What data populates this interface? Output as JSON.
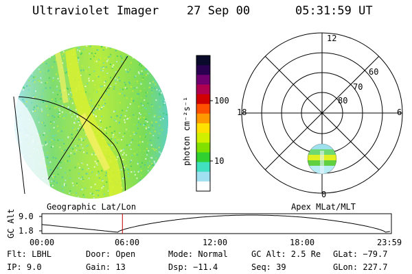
{
  "header": {
    "instrument": "Ultraviolet Imager",
    "date": "27 Sep 00",
    "time": "05:31:59 UT"
  },
  "colorbar": {
    "label": "photon cm⁻²s⁻¹",
    "ticks": [
      "100",
      "10"
    ],
    "colors": [
      "#0a0a2a",
      "#2a0050",
      "#700070",
      "#b00050",
      "#d00000",
      "#ff5000",
      "#ff9900",
      "#ffe000",
      "#d0f000",
      "#80e000",
      "#30d030",
      "#40e0c0",
      "#a0e0f0",
      "#ffffff"
    ]
  },
  "polar": {
    "mlt_labels": {
      "top": "12",
      "left": "18",
      "right": "6",
      "bottom": "0"
    },
    "lat_labels": [
      "60",
      "70",
      "80"
    ]
  },
  "timeline": {
    "y_label": "GC Alt",
    "y_ticks": [
      "9.0",
      "1.8"
    ],
    "left_title": "Geographic Lat/Lon",
    "right_title": "Apex MLat/MLT",
    "x_ticks": [
      "00:00",
      "06:00",
      "12:00",
      "18:00",
      "23:59"
    ],
    "current_time_hours": 5.533
  },
  "info": {
    "flt": "Flt: LBHL",
    "ip": "IP:  9.0",
    "door": "Door: Open",
    "gain": "Gain: 13",
    "mode": "Mode: Normal",
    "dsp": "Dsp:  −11.4",
    "gcalt": "GC Alt: 2.5 Re",
    "seq": "Seq: 39",
    "glat": "GLat: −79.7",
    "glon": "GLon: 227.7"
  }
}
